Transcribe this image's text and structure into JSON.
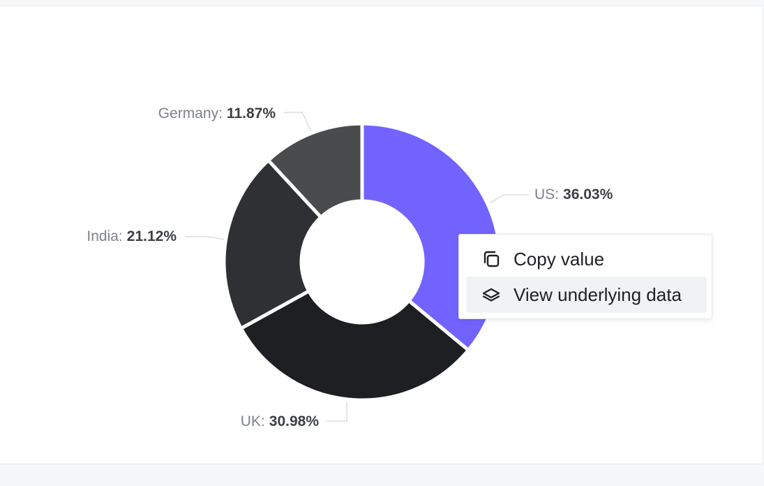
{
  "chart_data": {
    "type": "pie",
    "donut": true,
    "categories": [
      "US",
      "UK",
      "India",
      "Germany"
    ],
    "values": [
      36.03,
      30.98,
      21.12,
      11.87
    ],
    "value_labels": [
      "36.03%",
      "30.98%",
      "21.12%",
      "11.87%"
    ],
    "label_separator": ":",
    "colors": [
      "#7263ff",
      "#1e1f22",
      "#2f3033",
      "#4a4b4d"
    ]
  },
  "context_menu": {
    "items": [
      "Copy value",
      "View underlying data"
    ],
    "highlighted": 1
  }
}
